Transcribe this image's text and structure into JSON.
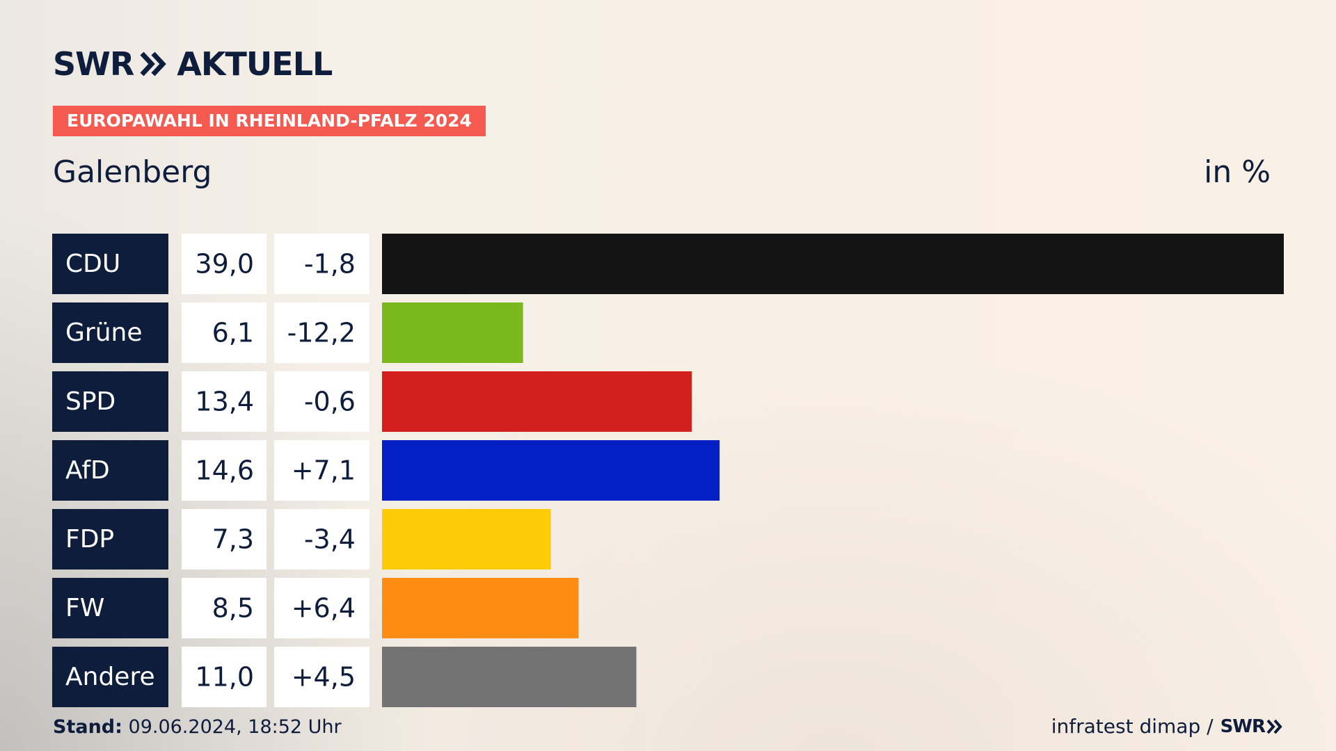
{
  "brand": {
    "name": "SWR",
    "suffix": "AKTUELL"
  },
  "badge": "EUROPAWAHL IN RHEINLAND-PFALZ 2024",
  "region": "Galenberg",
  "unit": "in %",
  "colors": {
    "navy": "#0f1d3c",
    "badge": "#f45a4f"
  },
  "chart_data": {
    "type": "bar",
    "orientation": "horizontal",
    "categories": [
      "CDU",
      "Grüne",
      "SPD",
      "AfD",
      "FDP",
      "FW",
      "Andere"
    ],
    "values": [
      39.0,
      6.1,
      13.4,
      14.6,
      7.3,
      8.5,
      11.0
    ],
    "value_labels": [
      "39,0",
      "6,1",
      "13,4",
      "14,6",
      "7,3",
      "8,5",
      "11,0"
    ],
    "change_labels": [
      "-1,8",
      "-12,2",
      "-0,6",
      "+7,1",
      "-3,4",
      "+6,4",
      "+4,5"
    ],
    "changes": [
      -1.8,
      -12.2,
      -0.6,
      7.1,
      -3.4,
      6.4,
      4.5
    ],
    "colors": [
      "#141414",
      "#7ab91e",
      "#d41f1f",
      "#0420c4",
      "#fdcb08",
      "#fd8c14",
      "#737373"
    ],
    "xlim": [
      0,
      39.0
    ]
  },
  "footer": {
    "stand_label": "Stand:",
    "stand_value": "09.06.2024, 18:52 Uhr",
    "source": "infratest dimap /",
    "source_brand": "SWR"
  }
}
